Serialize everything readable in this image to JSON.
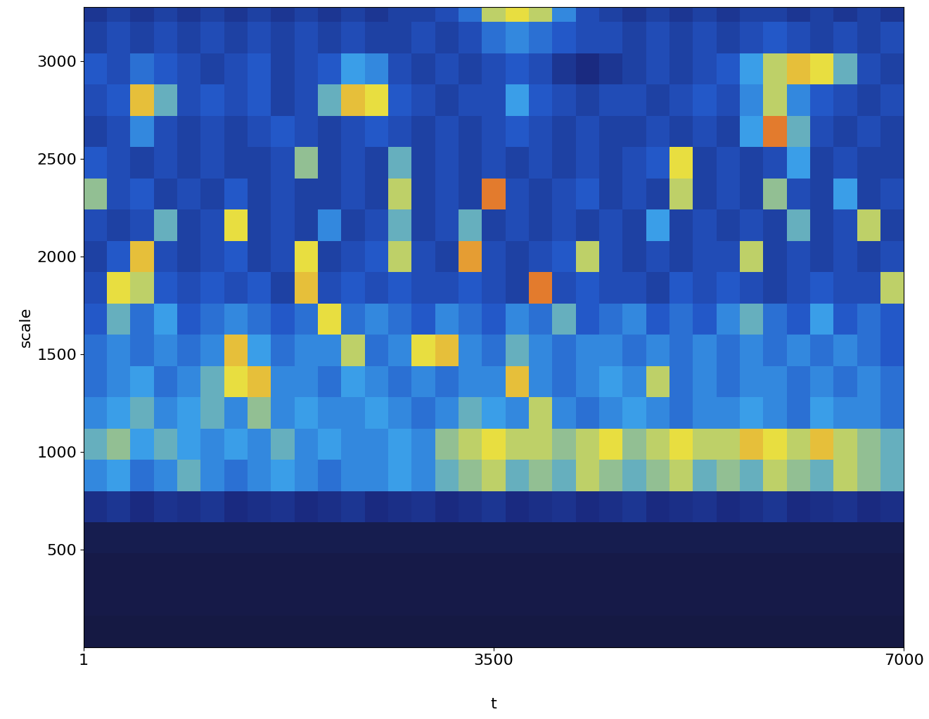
{
  "chart_data": {
    "type": "heatmap",
    "x_label": "t",
    "y_label": "scale",
    "xlim": [
      1,
      7000
    ],
    "ylim": [
      1,
      3275
    ],
    "xticks": [
      1,
      3500,
      7000
    ],
    "yticks": [
      500,
      1000,
      1500,
      2000,
      2500,
      3000
    ],
    "x": [
      0,
      200,
      400,
      600,
      800,
      1000,
      1200,
      1400,
      1600,
      1800,
      2000,
      2200,
      2400,
      2600,
      2800,
      3000,
      3200,
      3400,
      3600,
      3800,
      4000,
      4200,
      4400,
      4600,
      4800,
      5000,
      5200,
      5400,
      5600,
      5800,
      6000,
      6200,
      6400,
      6600,
      6800,
      7000
    ],
    "y": [
      0,
      160,
      320,
      480,
      640,
      800,
      960,
      1120,
      1280,
      1440,
      1600,
      1760,
      1920,
      2080,
      2240,
      2400,
      2560,
      2720,
      2880,
      3040,
      3200,
      3275
    ],
    "color_range": [
      0,
      1
    ],
    "cells": [
      [
        0.05,
        0.05,
        0.05,
        0.05,
        0.05,
        0.05,
        0.05,
        0.05,
        0.05,
        0.05,
        0.05,
        0.05,
        0.05,
        0.05,
        0.05,
        0.05,
        0.05,
        0.05,
        0.05,
        0.05,
        0.05,
        0.05,
        0.05,
        0.05,
        0.05,
        0.05,
        0.05,
        0.05,
        0.05,
        0.05,
        0.05,
        0.05,
        0.05,
        0.05,
        0.05
      ],
      [
        0.06,
        0.06,
        0.06,
        0.06,
        0.06,
        0.06,
        0.06,
        0.06,
        0.06,
        0.06,
        0.06,
        0.06,
        0.06,
        0.06,
        0.06,
        0.06,
        0.06,
        0.06,
        0.06,
        0.06,
        0.06,
        0.06,
        0.06,
        0.06,
        0.06,
        0.06,
        0.06,
        0.06,
        0.06,
        0.06,
        0.06,
        0.06,
        0.06,
        0.06,
        0.06
      ],
      [
        0.06,
        0.06,
        0.06,
        0.06,
        0.06,
        0.06,
        0.06,
        0.06,
        0.06,
        0.06,
        0.06,
        0.06,
        0.06,
        0.06,
        0.06,
        0.06,
        0.06,
        0.06,
        0.06,
        0.06,
        0.06,
        0.06,
        0.06,
        0.06,
        0.06,
        0.06,
        0.06,
        0.06,
        0.06,
        0.06,
        0.06,
        0.06,
        0.06,
        0.06,
        0.06
      ],
      [
        0.08,
        0.08,
        0.08,
        0.08,
        0.08,
        0.08,
        0.08,
        0.08,
        0.08,
        0.08,
        0.08,
        0.08,
        0.08,
        0.08,
        0.08,
        0.08,
        0.08,
        0.08,
        0.08,
        0.08,
        0.08,
        0.08,
        0.08,
        0.08,
        0.08,
        0.08,
        0.08,
        0.08,
        0.08,
        0.08,
        0.08,
        0.08,
        0.08,
        0.08,
        0.08
      ],
      [
        0.22,
        0.25,
        0.2,
        0.24,
        0.22,
        0.25,
        0.2,
        0.22,
        0.24,
        0.2,
        0.22,
        0.25,
        0.2,
        0.22,
        0.24,
        0.2,
        0.22,
        0.25,
        0.2,
        0.22,
        0.24,
        0.2,
        0.22,
        0.25,
        0.2,
        0.22,
        0.24,
        0.2,
        0.22,
        0.25,
        0.2,
        0.22,
        0.24,
        0.2,
        0.22
      ],
      [
        0.5,
        0.55,
        0.45,
        0.5,
        0.6,
        0.5,
        0.45,
        0.5,
        0.55,
        0.5,
        0.45,
        0.5,
        0.5,
        0.55,
        0.5,
        0.6,
        0.65,
        0.7,
        0.6,
        0.65,
        0.6,
        0.7,
        0.65,
        0.6,
        0.65,
        0.7,
        0.6,
        0.65,
        0.6,
        0.7,
        0.65,
        0.6,
        0.7,
        0.65,
        0.6
      ],
      [
        0.6,
        0.65,
        0.55,
        0.6,
        0.55,
        0.5,
        0.55,
        0.5,
        0.6,
        0.5,
        0.55,
        0.5,
        0.5,
        0.55,
        0.5,
        0.65,
        0.7,
        0.75,
        0.7,
        0.7,
        0.65,
        0.7,
        0.75,
        0.65,
        0.7,
        0.75,
        0.7,
        0.7,
        0.8,
        0.75,
        0.7,
        0.8,
        0.7,
        0.65,
        0.6
      ],
      [
        0.5,
        0.55,
        0.6,
        0.5,
        0.55,
        0.6,
        0.5,
        0.65,
        0.5,
        0.55,
        0.5,
        0.5,
        0.55,
        0.5,
        0.45,
        0.5,
        0.6,
        0.55,
        0.5,
        0.7,
        0.5,
        0.45,
        0.5,
        0.55,
        0.5,
        0.45,
        0.5,
        0.5,
        0.55,
        0.5,
        0.45,
        0.55,
        0.5,
        0.5,
        0.45
      ],
      [
        0.45,
        0.5,
        0.55,
        0.45,
        0.5,
        0.6,
        0.75,
        0.8,
        0.5,
        0.5,
        0.45,
        0.55,
        0.5,
        0.45,
        0.5,
        0.45,
        0.5,
        0.5,
        0.8,
        0.5,
        0.45,
        0.5,
        0.55,
        0.5,
        0.7,
        0.45,
        0.5,
        0.45,
        0.5,
        0.5,
        0.45,
        0.5,
        0.45,
        0.5,
        0.45
      ],
      [
        0.45,
        0.5,
        0.45,
        0.5,
        0.45,
        0.5,
        0.8,
        0.55,
        0.45,
        0.5,
        0.5,
        0.7,
        0.45,
        0.5,
        0.75,
        0.8,
        0.5,
        0.45,
        0.6,
        0.5,
        0.45,
        0.5,
        0.5,
        0.45,
        0.5,
        0.45,
        0.5,
        0.45,
        0.5,
        0.45,
        0.5,
        0.45,
        0.5,
        0.45,
        0.4
      ],
      [
        0.4,
        0.6,
        0.45,
        0.55,
        0.4,
        0.45,
        0.5,
        0.45,
        0.4,
        0.45,
        0.75,
        0.45,
        0.5,
        0.45,
        0.4,
        0.5,
        0.45,
        0.4,
        0.5,
        0.45,
        0.6,
        0.4,
        0.45,
        0.5,
        0.4,
        0.45,
        0.4,
        0.5,
        0.6,
        0.45,
        0.4,
        0.55,
        0.4,
        0.45,
        0.4
      ],
      [
        0.35,
        0.75,
        0.7,
        0.4,
        0.35,
        0.4,
        0.35,
        0.4,
        0.3,
        0.8,
        0.35,
        0.4,
        0.35,
        0.4,
        0.35,
        0.35,
        0.4,
        0.35,
        0.3,
        0.9,
        0.35,
        0.4,
        0.35,
        0.35,
        0.3,
        0.4,
        0.35,
        0.4,
        0.35,
        0.3,
        0.35,
        0.4,
        0.35,
        0.35,
        0.7
      ],
      [
        0.3,
        0.4,
        0.8,
        0.35,
        0.3,
        0.35,
        0.4,
        0.3,
        0.35,
        0.75,
        0.3,
        0.35,
        0.4,
        0.7,
        0.35,
        0.3,
        0.85,
        0.35,
        0.3,
        0.35,
        0.4,
        0.7,
        0.35,
        0.3,
        0.35,
        0.3,
        0.35,
        0.35,
        0.7,
        0.3,
        0.35,
        0.3,
        0.35,
        0.3,
        0.35
      ],
      [
        0.35,
        0.3,
        0.35,
        0.6,
        0.3,
        0.35,
        0.75,
        0.3,
        0.35,
        0.3,
        0.5,
        0.3,
        0.35,
        0.6,
        0.3,
        0.35,
        0.6,
        0.3,
        0.35,
        0.3,
        0.35,
        0.3,
        0.35,
        0.3,
        0.55,
        0.3,
        0.35,
        0.3,
        0.35,
        0.3,
        0.6,
        0.3,
        0.35,
        0.7,
        0.3
      ],
      [
        0.65,
        0.35,
        0.4,
        0.3,
        0.35,
        0.3,
        0.4,
        0.3,
        0.35,
        0.3,
        0.3,
        0.35,
        0.3,
        0.7,
        0.3,
        0.35,
        0.3,
        0.9,
        0.35,
        0.3,
        0.35,
        0.4,
        0.3,
        0.35,
        0.3,
        0.7,
        0.3,
        0.35,
        0.3,
        0.65,
        0.35,
        0.3,
        0.55,
        0.3,
        0.35
      ],
      [
        0.4,
        0.35,
        0.3,
        0.35,
        0.3,
        0.35,
        0.3,
        0.3,
        0.35,
        0.65,
        0.3,
        0.35,
        0.3,
        0.6,
        0.3,
        0.35,
        0.3,
        0.35,
        0.3,
        0.35,
        0.3,
        0.35,
        0.3,
        0.35,
        0.4,
        0.75,
        0.3,
        0.35,
        0.3,
        0.35,
        0.55,
        0.3,
        0.35,
        0.3,
        0.3
      ],
      [
        0.3,
        0.35,
        0.5,
        0.35,
        0.3,
        0.35,
        0.3,
        0.35,
        0.4,
        0.35,
        0.3,
        0.35,
        0.4,
        0.35,
        0.3,
        0.35,
        0.3,
        0.35,
        0.4,
        0.35,
        0.3,
        0.35,
        0.3,
        0.3,
        0.35,
        0.3,
        0.35,
        0.3,
        0.55,
        0.9,
        0.6,
        0.35,
        0.3,
        0.35,
        0.3
      ],
      [
        0.35,
        0.4,
        0.8,
        0.6,
        0.35,
        0.4,
        0.35,
        0.4,
        0.3,
        0.35,
        0.6,
        0.8,
        0.75,
        0.4,
        0.35,
        0.3,
        0.35,
        0.35,
        0.55,
        0.4,
        0.35,
        0.3,
        0.35,
        0.35,
        0.3,
        0.35,
        0.4,
        0.35,
        0.5,
        0.7,
        0.5,
        0.4,
        0.35,
        0.3,
        0.35
      ],
      [
        0.4,
        0.35,
        0.45,
        0.4,
        0.35,
        0.3,
        0.35,
        0.4,
        0.3,
        0.35,
        0.4,
        0.55,
        0.5,
        0.35,
        0.3,
        0.35,
        0.3,
        0.35,
        0.4,
        0.35,
        0.25,
        0.2,
        0.25,
        0.3,
        0.35,
        0.3,
        0.35,
        0.4,
        0.55,
        0.7,
        0.8,
        0.75,
        0.6,
        0.35,
        0.3
      ],
      [
        0.3,
        0.35,
        0.3,
        0.35,
        0.3,
        0.35,
        0.3,
        0.35,
        0.3,
        0.35,
        0.3,
        0.35,
        0.3,
        0.3,
        0.35,
        0.3,
        0.35,
        0.45,
        0.5,
        0.45,
        0.4,
        0.35,
        0.35,
        0.3,
        0.35,
        0.3,
        0.35,
        0.3,
        0.35,
        0.4,
        0.35,
        0.3,
        0.35,
        0.3,
        0.35
      ],
      [
        0.25,
        0.3,
        0.25,
        0.3,
        0.25,
        0.3,
        0.25,
        0.3,
        0.25,
        0.3,
        0.25,
        0.3,
        0.25,
        0.3,
        0.3,
        0.35,
        0.45,
        0.7,
        0.75,
        0.7,
        0.5,
        0.35,
        0.3,
        0.25,
        0.3,
        0.25,
        0.3,
        0.25,
        0.3,
        0.3,
        0.25,
        0.3,
        0.25,
        0.3,
        0.25
      ]
    ]
  }
}
